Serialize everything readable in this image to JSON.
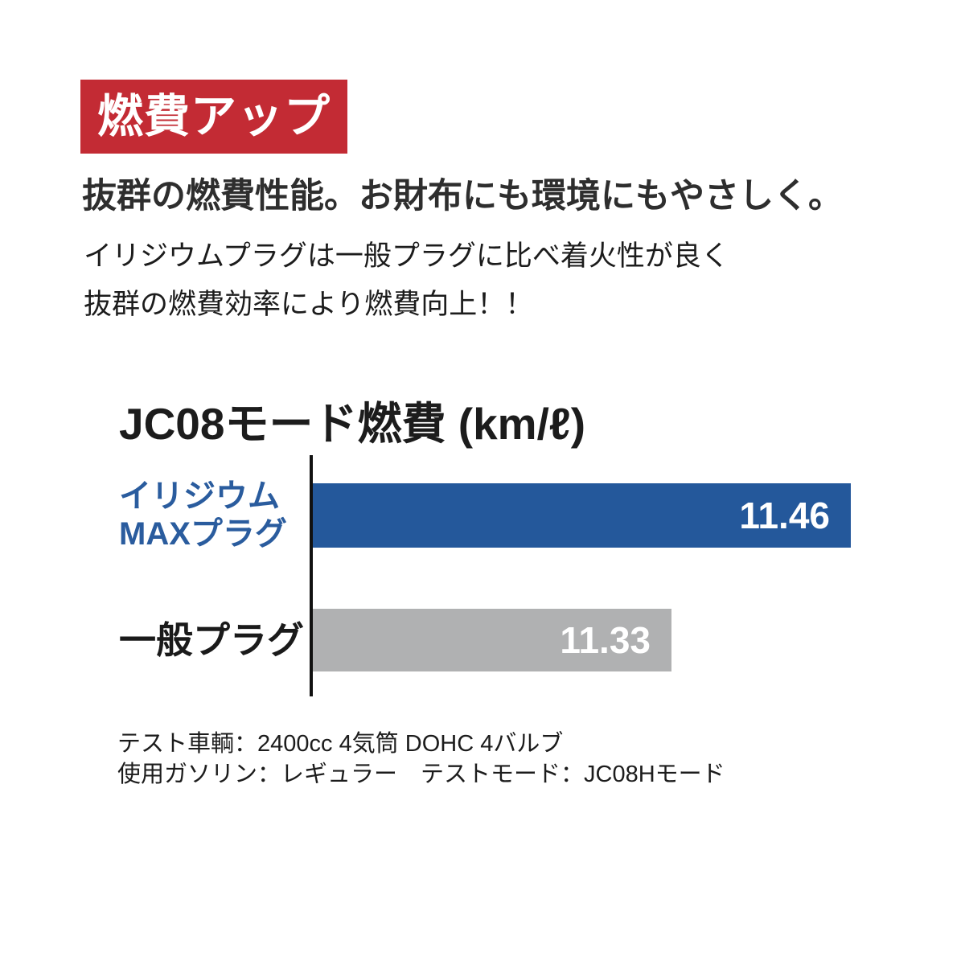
{
  "page": {
    "background": "#ffffff"
  },
  "badge": {
    "label": "燃費アップ",
    "bg_color": "#C32B34",
    "text_color": "#ffffff"
  },
  "heading": "抜群の燃費性能。お財布にも環境にもやさしく。",
  "description": {
    "line1": "イリジウムプラグは一般プラグに比べ着火性が良く",
    "line2": "抜群の燃費効率により燃費向上！！"
  },
  "chart_data": {
    "type": "bar",
    "orientation": "horizontal",
    "title": "JC08モード燃費 (km/ℓ)",
    "categories": [
      "イリジウムMAXプラグ",
      "一般プラグ"
    ],
    "category_label_lines": [
      [
        "イリジウム",
        "MAXプラグ"
      ],
      [
        "一般プラグ"
      ]
    ],
    "values": [
      11.46,
      11.33
    ],
    "value_labels": [
      "11.46",
      "11.33"
    ],
    "bar_colors": [
      "#24589B",
      "#B0B1B2"
    ],
    "label_colors": [
      "#2A5C9E",
      "#1A1A1A"
    ],
    "axis_min": 11.07,
    "axis_max": 11.46,
    "axis_color": "#111111",
    "grid": false,
    "legend": false,
    "value_label_position": "inside-end",
    "value_label_color": "#ffffff"
  },
  "footnotes": {
    "line1": "テスト車輌：2400cc 4気筒 DOHC 4バルブ",
    "line2": "使用ガソリン：レギュラー　テストモード：JC08Hモード"
  }
}
